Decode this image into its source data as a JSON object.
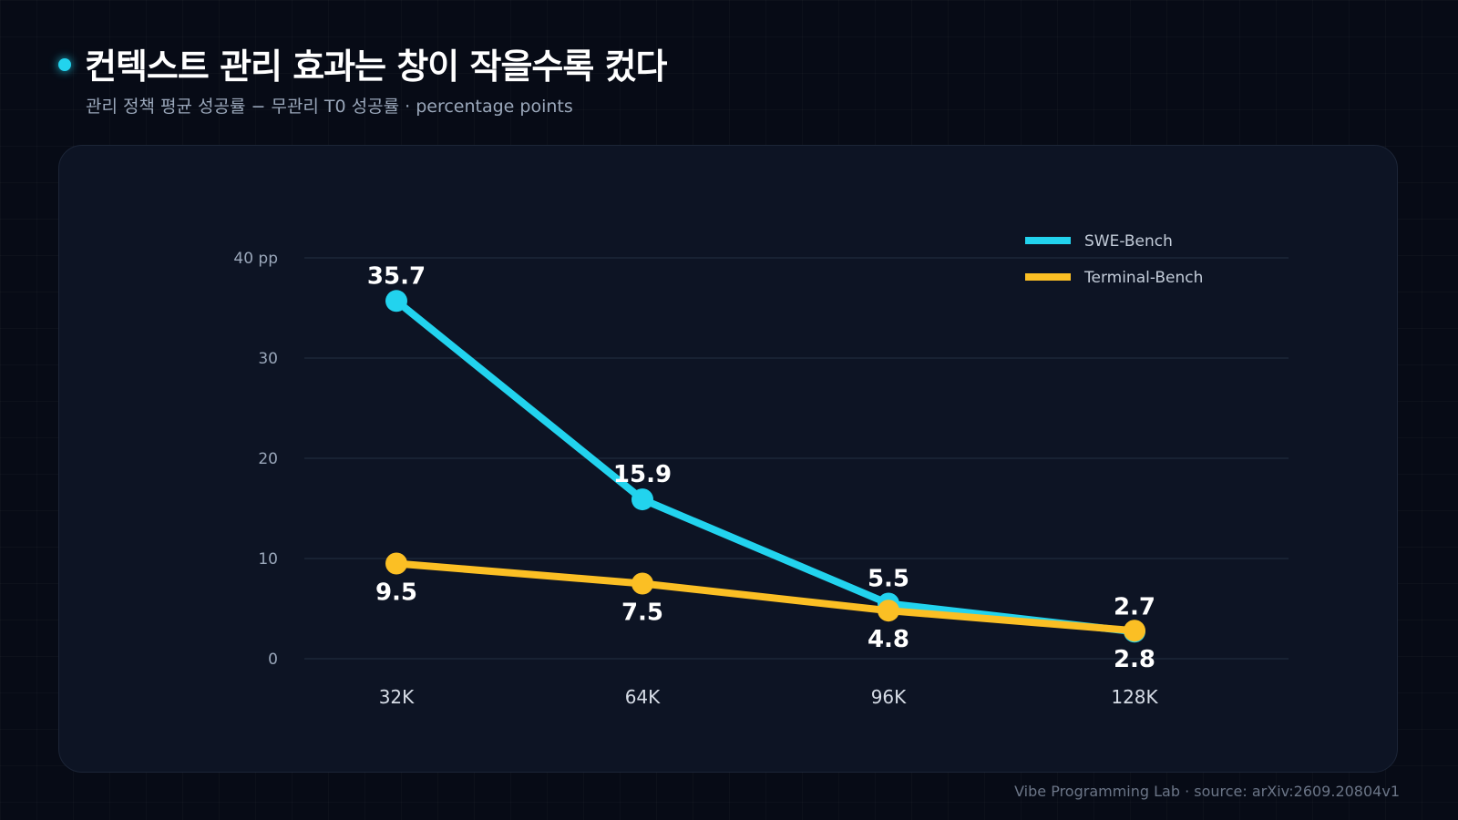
{
  "title": "컨텍스트 관리 효과는 창이 작을수록 컸다",
  "subtitle": "관리 정책 평균 성공률 − 무관리 T0 성공률 · percentage points",
  "footer": "Vibe Programming Lab · source: arXiv:2609.20804v1",
  "colors": {
    "background": "#070b16",
    "card": "#0d1424",
    "accent": "#22d3ee",
    "swe": "#22d3ee",
    "terminal": "#fbbf24",
    "grid": "#1f2a3c",
    "tick": "#9aa7ba"
  },
  "chart_data": {
    "type": "line",
    "categories": [
      "32K",
      "64K",
      "96K",
      "128K"
    ],
    "y_ticks": [
      "0",
      "10",
      "20",
      "30",
      "40 pp"
    ],
    "ylim": [
      0,
      40
    ],
    "grid": true,
    "legend_position": "top-right",
    "series": [
      {
        "name": "SWE-Bench",
        "values": [
          35.7,
          15.9,
          5.5,
          2.7
        ],
        "labels": [
          "35.7",
          "15.9",
          "5.5",
          "2.7"
        ],
        "label_placement": "above",
        "color": "#22d3ee"
      },
      {
        "name": "Terminal-Bench",
        "values": [
          9.5,
          7.5,
          4.8,
          2.8
        ],
        "labels": [
          "9.5",
          "7.5",
          "4.8",
          "2.8"
        ],
        "label_placement": "below",
        "color": "#fbbf24"
      }
    ]
  }
}
